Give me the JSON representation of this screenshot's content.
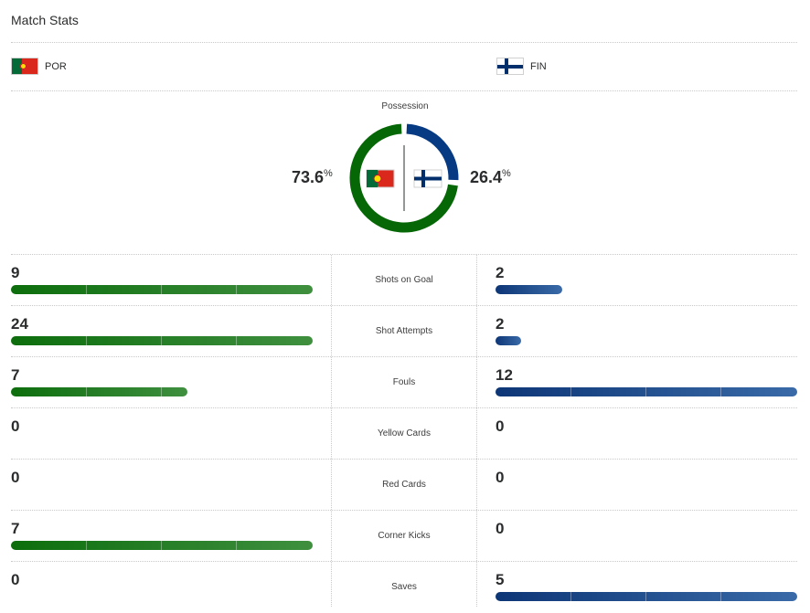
{
  "title": "Match Stats",
  "teams": {
    "home": {
      "abbr": "POR",
      "color": "#066706",
      "flag_icon": "portugal-flag-icon"
    },
    "away": {
      "abbr": "FIN",
      "color": "#063a82",
      "flag_icon": "finland-flag-icon"
    }
  },
  "possession": {
    "label": "Possession",
    "home_value": "73.6",
    "away_value": "26.4",
    "unit": "%"
  },
  "stats": [
    {
      "label": "Shots on Goal",
      "home": 9,
      "away": 2
    },
    {
      "label": "Shot Attempts",
      "home": 24,
      "away": 2
    },
    {
      "label": "Fouls",
      "home": 7,
      "away": 12
    },
    {
      "label": "Yellow Cards",
      "home": 0,
      "away": 0
    },
    {
      "label": "Red Cards",
      "home": 0,
      "away": 0
    },
    {
      "label": "Corner Kicks",
      "home": 7,
      "away": 0
    },
    {
      "label": "Saves",
      "home": 0,
      "away": 5
    }
  ]
}
